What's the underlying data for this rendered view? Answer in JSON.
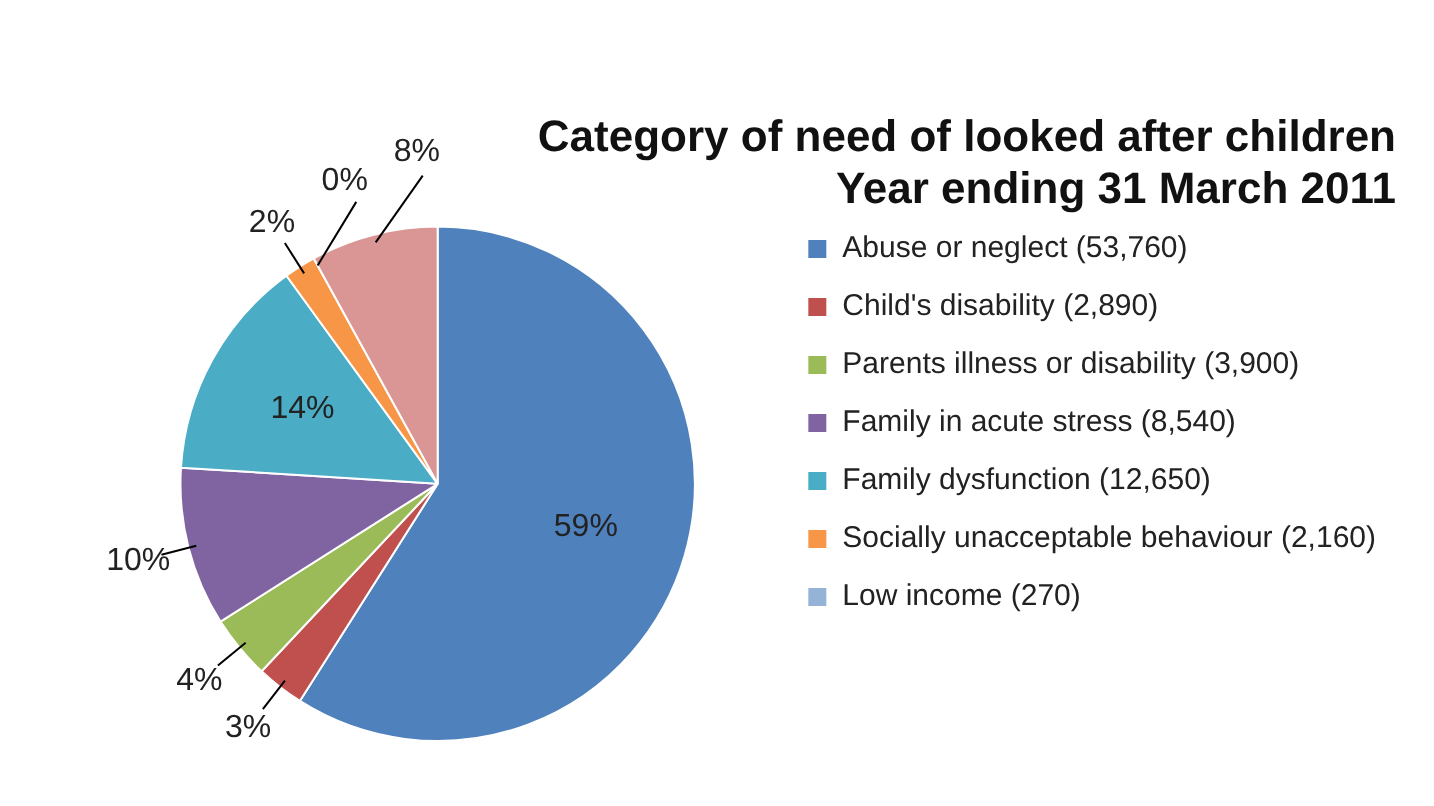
{
  "chart_data": {
    "type": "pie",
    "title": "Category of need of looked after children",
    "subtitle": "Year ending 31 March 2011",
    "categories": [
      "Abuse or neglect (53,760)",
      "Child's disability (2,890)",
      "Parents illness or disability (3,900)",
      "Family in acute stress (8,540)",
      "Family dysfunction (12,650)",
      "Socially unacceptable behaviour (2,160)",
      "Low income (270)",
      null
    ],
    "values": [
      59,
      3,
      4,
      10,
      14,
      2,
      0,
      8
    ],
    "value_labels": [
      "59%",
      "3%",
      "4%",
      "10%",
      "14%",
      "2%",
      "0%",
      "8%"
    ],
    "colors": [
      "#4f81bd",
      "#c0504d",
      "#9bbb59",
      "#8064a2",
      "#4bacc6",
      "#f79646",
      "#95b3d7",
      "#d99694"
    ],
    "legend": "right"
  }
}
